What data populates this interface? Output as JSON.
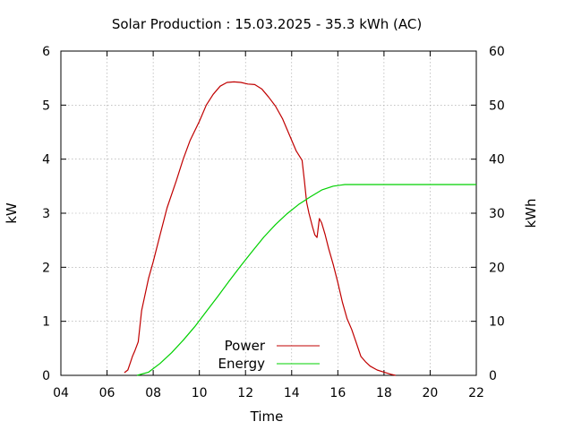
{
  "chart_data": {
    "type": "line",
    "title": "Solar Production : 15.03.2025 - 35.3 kWh (AC)",
    "xlabel": "Time",
    "ylabel_left": "kW",
    "ylabel_right": "kWh",
    "xlim": [
      4,
      22
    ],
    "ylim_left": [
      0,
      6
    ],
    "ylim_right": [
      0,
      60
    ],
    "x_ticks": [
      "04",
      "06",
      "08",
      "10",
      "12",
      "14",
      "16",
      "18",
      "20",
      "22"
    ],
    "y_ticks_left": [
      "0",
      "1",
      "2",
      "3",
      "4",
      "5",
      "6"
    ],
    "y_ticks_right": [
      "0",
      "10",
      "20",
      "30",
      "40",
      "50",
      "60"
    ],
    "grid": true,
    "legend_position": "bottom-center",
    "series": [
      {
        "name": "Power",
        "axis": "left",
        "color": "#c00000",
        "x": [
          6.75,
          6.9,
          7.0,
          7.1,
          7.2,
          7.35,
          7.5,
          7.65,
          7.8,
          8.0,
          8.3,
          8.6,
          9.0,
          9.3,
          9.6,
          10.0,
          10.3,
          10.6,
          10.9,
          11.2,
          11.5,
          11.8,
          12.1,
          12.4,
          12.7,
          13.0,
          13.3,
          13.6,
          13.9,
          14.2,
          14.45,
          14.55,
          14.65,
          14.75,
          14.9,
          15.0,
          15.1,
          15.2,
          15.3,
          15.45,
          15.6,
          15.8,
          16.0,
          16.2,
          16.4,
          16.6,
          16.8,
          17.0,
          17.2,
          17.4,
          17.7,
          18.0,
          18.3,
          18.5
        ],
        "values": [
          0.05,
          0.1,
          0.22,
          0.35,
          0.45,
          0.62,
          1.2,
          1.5,
          1.8,
          2.1,
          2.6,
          3.1,
          3.6,
          4.0,
          4.35,
          4.7,
          5.0,
          5.2,
          5.35,
          5.42,
          5.43,
          5.42,
          5.39,
          5.38,
          5.3,
          5.15,
          4.98,
          4.75,
          4.45,
          4.15,
          3.98,
          3.6,
          3.2,
          3.0,
          2.75,
          2.6,
          2.55,
          2.9,
          2.82,
          2.6,
          2.35,
          2.05,
          1.72,
          1.35,
          1.05,
          0.85,
          0.6,
          0.35,
          0.25,
          0.17,
          0.1,
          0.06,
          0.02,
          0.0
        ]
      },
      {
        "name": "Energy",
        "axis": "right",
        "color": "#00d000",
        "x": [
          7.3,
          7.8,
          8.3,
          8.8,
          9.3,
          9.8,
          10.3,
          10.8,
          11.3,
          11.8,
          12.3,
          12.8,
          13.3,
          13.8,
          14.3,
          14.8,
          15.3,
          15.8,
          16.3,
          16.8,
          17.2,
          17.5,
          18.0,
          19.0,
          20.0,
          21.0,
          22.0
        ],
        "values": [
          0.0,
          0.6,
          2.2,
          4.2,
          6.5,
          9.0,
          11.8,
          14.6,
          17.5,
          20.3,
          23.0,
          25.6,
          27.9,
          29.9,
          31.6,
          33.0,
          34.3,
          35.0,
          35.3,
          35.3,
          35.3,
          35.3,
          35.3,
          35.3,
          35.3,
          35.3,
          35.3
        ]
      }
    ]
  }
}
